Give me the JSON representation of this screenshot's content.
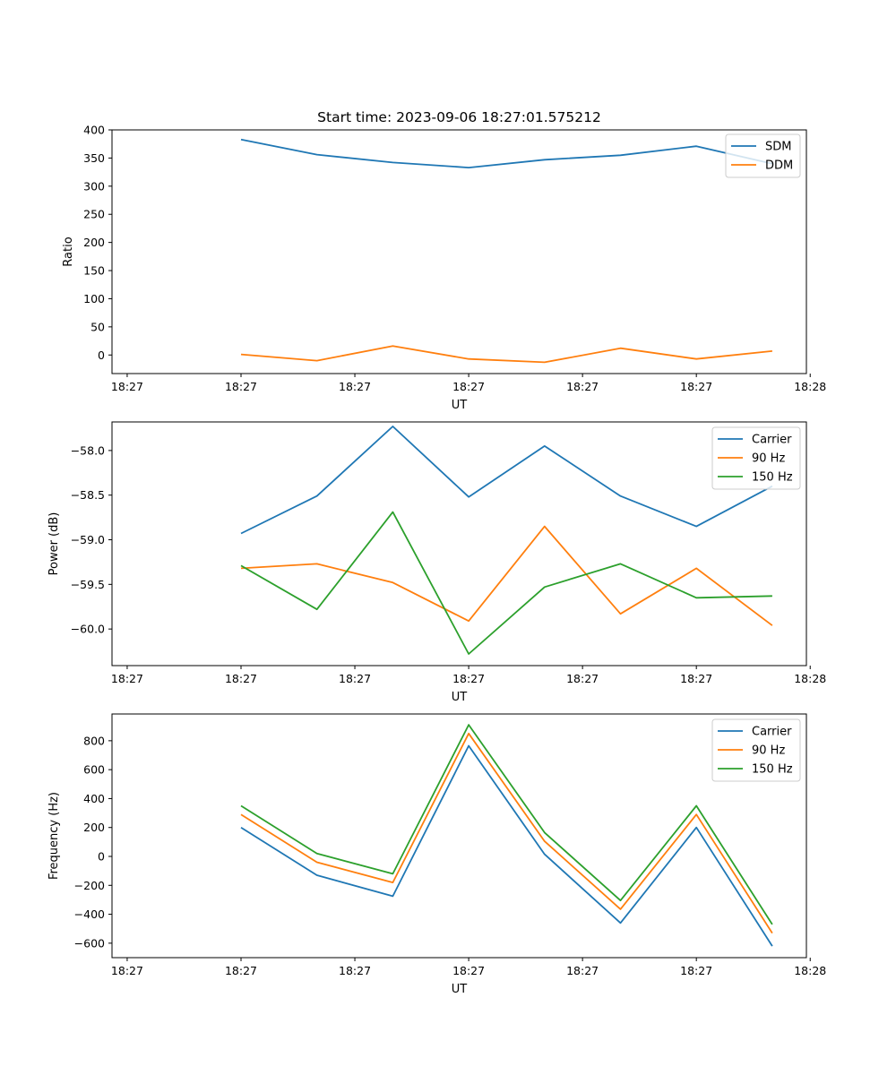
{
  "chart_data": [
    {
      "type": "line",
      "title": "Start time: 2023-09-06 18:27:01.575212",
      "xlabel": "UT",
      "ylabel": "Ratio",
      "ylim": [
        -33,
        400
      ],
      "yticks": [
        0,
        50,
        100,
        150,
        200,
        250,
        300,
        350,
        400
      ],
      "ytick_labels": [
        "0",
        "50",
        "100",
        "150",
        "200",
        "250",
        "300",
        "350",
        "400"
      ],
      "x": [
        1,
        2,
        3,
        4,
        5,
        6,
        7,
        8
      ],
      "xlim": [
        -0.7,
        8.45
      ],
      "xticks": [
        -0.5,
        1.0,
        2.5,
        4.0,
        5.5,
        7.0,
        8.5
      ],
      "xtick_labels": [
        "18:27",
        "18:27",
        "18:27",
        "18:27",
        "18:27",
        "18:27",
        "18:28"
      ],
      "legend_position": "top-right",
      "series": [
        {
          "name": "SDM",
          "color": "#1f77b4",
          "values": [
            383,
            356,
            342,
            333,
            347,
            355,
            371,
            340
          ]
        },
        {
          "name": "DDM",
          "color": "#ff7f0e",
          "values": [
            1,
            -10,
            16,
            -7,
            -13,
            12,
            -7,
            7
          ]
        }
      ]
    },
    {
      "type": "line",
      "title": "",
      "xlabel": "UT",
      "ylabel": "Power (dB)",
      "ylim": [
        -60.41,
        -57.68
      ],
      "yticks": [
        -60.0,
        -59.5,
        -59.0,
        -58.5,
        -58.0
      ],
      "ytick_labels": [
        "−60.0",
        "−59.5",
        "−59.0",
        "−58.5",
        "−58.0"
      ],
      "x": [
        1,
        2,
        3,
        4,
        5,
        6,
        7,
        8
      ],
      "xlim": [
        -0.7,
        8.45
      ],
      "xticks": [
        -0.5,
        1.0,
        2.5,
        4.0,
        5.5,
        7.0,
        8.5
      ],
      "xtick_labels": [
        "18:27",
        "18:27",
        "18:27",
        "18:27",
        "18:27",
        "18:27",
        "18:28"
      ],
      "legend_position": "top-right",
      "series": [
        {
          "name": "Carrier",
          "color": "#1f77b4",
          "values": [
            -58.93,
            -58.51,
            -57.73,
            -58.52,
            -57.95,
            -58.51,
            -58.85,
            -58.4
          ]
        },
        {
          "name": "90 Hz",
          "color": "#ff7f0e",
          "values": [
            -59.32,
            -59.27,
            -59.48,
            -59.91,
            -58.85,
            -59.83,
            -59.32,
            -59.96
          ]
        },
        {
          "name": "150 Hz",
          "color": "#2ca02c",
          "values": [
            -59.29,
            -59.78,
            -58.69,
            -60.28,
            -59.53,
            -59.27,
            -59.65,
            -59.63
          ]
        }
      ]
    },
    {
      "type": "line",
      "title": "",
      "xlabel": "UT",
      "ylabel": "Frequency (Hz)",
      "ylim": [
        -700,
        985
      ],
      "yticks": [
        -600,
        -400,
        -200,
        0,
        200,
        400,
        600,
        800
      ],
      "ytick_labels": [
        "−600",
        "−400",
        "−200",
        "0",
        "200",
        "400",
        "600",
        "800"
      ],
      "x": [
        1,
        2,
        3,
        4,
        5,
        6,
        7,
        8
      ],
      "xlim": [
        -0.7,
        8.45
      ],
      "xticks": [
        -0.5,
        1.0,
        2.5,
        4.0,
        5.5,
        7.0,
        8.5
      ],
      "xtick_labels": [
        "18:27",
        "18:27",
        "18:27",
        "18:27",
        "18:27",
        "18:27",
        "18:28"
      ],
      "legend_position": "top-right",
      "series": [
        {
          "name": "Carrier",
          "color": "#1f77b4",
          "values": [
            200,
            -130,
            -275,
            765,
            15,
            -460,
            200,
            -620
          ]
        },
        {
          "name": "90 Hz",
          "color": "#ff7f0e",
          "values": [
            290,
            -40,
            -180,
            850,
            105,
            -365,
            290,
            -530
          ]
        },
        {
          "name": "150 Hz",
          "color": "#2ca02c",
          "values": [
            350,
            20,
            -120,
            910,
            165,
            -305,
            350,
            -470
          ]
        }
      ]
    }
  ]
}
